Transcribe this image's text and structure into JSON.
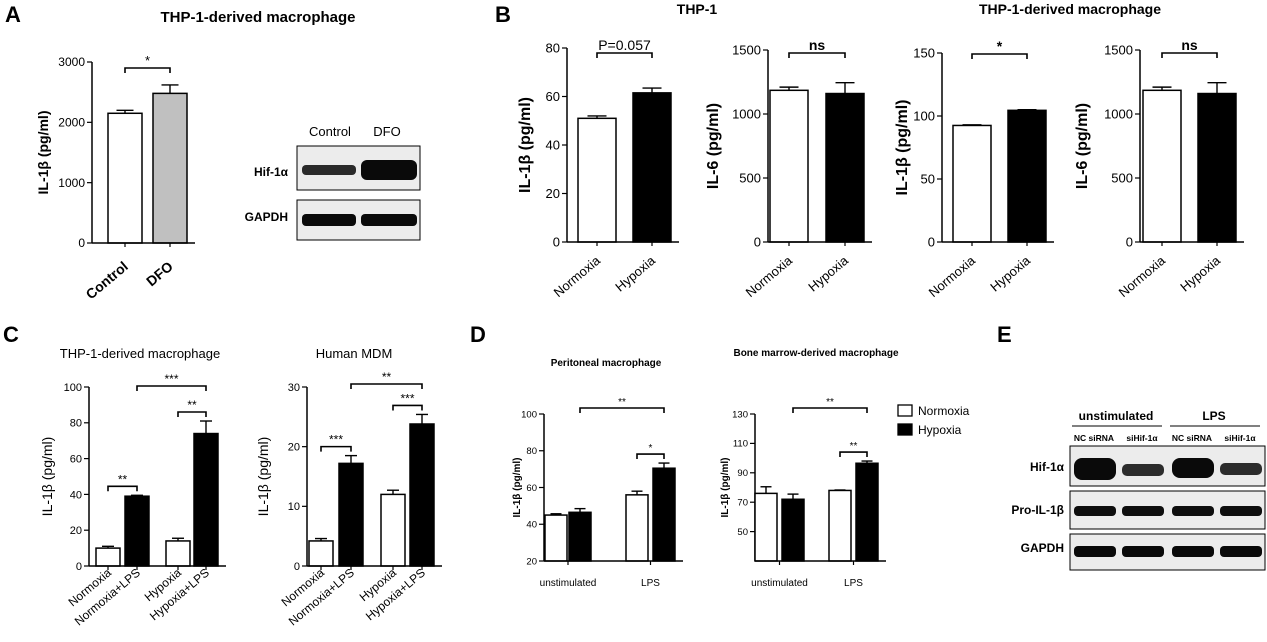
{
  "panels": {
    "A": {
      "label": "A",
      "title": "THP-1-derived macrophage"
    },
    "B": {
      "label": "B",
      "title_left": "THP-1",
      "title_right": "THP-1-derived macrophage"
    },
    "C": {
      "label": "C"
    },
    "D": {
      "label": "D"
    },
    "E": {
      "label": "E"
    }
  },
  "legend": {
    "normoxia": "Normoxia",
    "hypoxia": "Hypoxia"
  },
  "colors": {
    "black": "#000000",
    "white": "#ffffff",
    "gray": "#c0c0c0"
  },
  "blots": {
    "A": {
      "col_labels": [
        "Control",
        "DFO"
      ],
      "row_labels": [
        "Hif-1α",
        "GAPDH"
      ]
    },
    "E": {
      "group_labels": [
        "unstimulated",
        "LPS"
      ],
      "col_labels": [
        "NC siRNA",
        "siHif-1α",
        "NC siRNA",
        "siHif-1α"
      ],
      "row_labels": [
        "Hif-1α",
        "Pro-IL-1β",
        "GAPDH"
      ]
    }
  },
  "chart_data": [
    {
      "id": "A",
      "type": "bar",
      "title": "THP-1-derived macrophage",
      "categories": [
        "Control",
        "DFO"
      ],
      "values": [
        2150,
        2480
      ],
      "errors": [
        50,
        140
      ],
      "fills": [
        "white",
        "gray"
      ],
      "ylabel": "IL-1β (pg/ml)",
      "ylim": [
        0,
        3000
      ],
      "yticks": [
        0,
        1000,
        2000,
        3000
      ],
      "annotations": [
        {
          "from": 0,
          "to": 1,
          "text": "*"
        }
      ]
    },
    {
      "id": "B1",
      "type": "bar",
      "title": "THP-1",
      "categories": [
        "Normoxia",
        "Hypoxia"
      ],
      "values": [
        51,
        61.5
      ],
      "errors": [
        1,
        2
      ],
      "fills": [
        "white",
        "black"
      ],
      "ylabel": "IL-1β (pg/ml)",
      "ylim": [
        0,
        80
      ],
      "yticks": [
        0,
        20,
        40,
        60,
        80
      ],
      "annotations": [
        {
          "from": 0,
          "to": 1,
          "text": "P=0.057"
        }
      ]
    },
    {
      "id": "B2",
      "type": "bar",
      "title": "THP-1",
      "categories": [
        "Normoxia",
        "Hypoxia"
      ],
      "values": [
        1185,
        1160
      ],
      "errors": [
        25,
        85
      ],
      "fills": [
        "white",
        "black"
      ],
      "ylabel": "IL-6 (pg/ml)",
      "ylim": [
        0,
        1500
      ],
      "yticks": [
        0,
        500,
        1000,
        1500
      ],
      "annotations": [
        {
          "from": 0,
          "to": 1,
          "text": "ns"
        }
      ]
    },
    {
      "id": "B3",
      "type": "bar",
      "title": "THP-1-derived macrophage",
      "categories": [
        "Normoxia",
        "Hypoxia"
      ],
      "values": [
        92.5,
        104.5
      ],
      "errors": [
        0.5,
        0.5
      ],
      "fills": [
        "white",
        "black"
      ],
      "ylabel": "IL-1β (pg/ml)",
      "ylim": [
        0,
        150
      ],
      "yticks": [
        0,
        50,
        100,
        150
      ],
      "annotations": [
        {
          "from": 0,
          "to": 1,
          "text": "*"
        }
      ]
    },
    {
      "id": "B4",
      "type": "bar",
      "title": "THP-1-derived macrophage",
      "categories": [
        "Normoxia",
        "Hypoxia"
      ],
      "values": [
        1185,
        1160
      ],
      "errors": [
        25,
        85
      ],
      "fills": [
        "white",
        "black"
      ],
      "ylabel": "IL-6 (pg/ml)",
      "ylim": [
        0,
        1500
      ],
      "yticks": [
        0,
        500,
        1000,
        1500
      ],
      "annotations": [
        {
          "from": 0,
          "to": 1,
          "text": "ns"
        }
      ]
    },
    {
      "id": "C1",
      "type": "bar",
      "title": "THP-1-derived macrophage",
      "categories": [
        "Normoxia",
        "Normoxia+LPS",
        "Hypoxia",
        "Hypoxia+LPS"
      ],
      "values": [
        10,
        39,
        14,
        74
      ],
      "errors": [
        1,
        0.5,
        1.5,
        7
      ],
      "fills": [
        "white",
        "black",
        "white",
        "black"
      ],
      "ylabel": "IL-1β (pg/ml)",
      "ylim": [
        0,
        100
      ],
      "yticks": [
        0,
        20,
        40,
        60,
        80,
        100
      ],
      "annotations": [
        {
          "from": 0,
          "to": 1,
          "text": "**",
          "level": 0
        },
        {
          "from": 2,
          "to": 3,
          "text": "**",
          "level": 0
        },
        {
          "from": 1,
          "to": 3,
          "text": "***",
          "level": 1
        }
      ]
    },
    {
      "id": "C2",
      "type": "bar",
      "title": "Human MDM",
      "categories": [
        "Normoxia",
        "Normoxia+LPS",
        "Hypoxia",
        "Hypoxia+LPS"
      ],
      "values": [
        4.2,
        17.2,
        12,
        23.8
      ],
      "errors": [
        0.4,
        1.3,
        0.7,
        1.6
      ],
      "fills": [
        "white",
        "black",
        "white",
        "black"
      ],
      "ylabel": "IL-1β (pg/ml)",
      "ylim": [
        0,
        30
      ],
      "yticks": [
        0,
        10,
        20,
        30
      ],
      "annotations": [
        {
          "from": 0,
          "to": 1,
          "text": "***",
          "level": 0
        },
        {
          "from": 2,
          "to": 3,
          "text": "***",
          "level": 0
        },
        {
          "from": 1,
          "to": 3,
          "text": "**",
          "level": 1
        }
      ]
    },
    {
      "id": "D1",
      "type": "bar",
      "title": "Peritoneal macrophage",
      "categories": [
        "unstimulated",
        "LPS"
      ],
      "series": [
        {
          "name": "Normoxia",
          "values": [
            45,
            56
          ],
          "errors": [
            0.7,
            2
          ]
        },
        {
          "name": "Hypoxia",
          "values": [
            46.5,
            70.5
          ],
          "errors": [
            2,
            2.8
          ]
        }
      ],
      "ylabel": "IL-1β (pg/ml)",
      "ylim": [
        20,
        100
      ],
      "yticks": [
        20,
        40,
        60,
        80,
        100
      ],
      "annotations": [
        {
          "from": [
            1,
            0
          ],
          "to": [
            1,
            1
          ],
          "text": "*",
          "level": 0
        },
        {
          "from": [
            0,
            1
          ],
          "to": [
            1,
            1
          ],
          "text": "**",
          "level": 1
        }
      ]
    },
    {
      "id": "D2",
      "type": "bar",
      "title": "Bone marrow-derived macrophage",
      "categories": [
        "unstimulated",
        "LPS"
      ],
      "series": [
        {
          "name": "Normoxia",
          "values": [
            76,
            78
          ],
          "errors": [
            4.5,
            0.3
          ]
        },
        {
          "name": "Hypoxia",
          "values": [
            72,
            96.5
          ],
          "errors": [
            3.5,
            1.5
          ]
        }
      ],
      "ylabel": "IL-1β (pg/ml)",
      "ylim": [
        30,
        130
      ],
      "yticks": [
        50,
        70,
        90,
        110,
        130
      ],
      "annotations": [
        {
          "from": [
            1,
            0
          ],
          "to": [
            1,
            1
          ],
          "text": "**",
          "level": 0
        },
        {
          "from": [
            0,
            1
          ],
          "to": [
            1,
            1
          ],
          "text": "**",
          "level": 1
        }
      ]
    }
  ]
}
